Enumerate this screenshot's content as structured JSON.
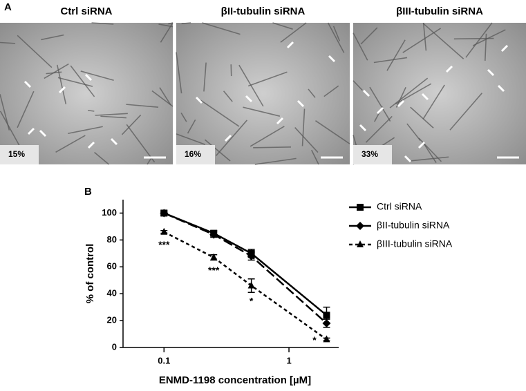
{
  "panel_a": {
    "label": "A",
    "images": [
      {
        "title": "Ctrl siRNA",
        "percent": "15%"
      },
      {
        "title": "βII-tubulin siRNA",
        "percent": "16%"
      },
      {
        "title": "βIII-tubulin siRNA",
        "percent": "33%"
      }
    ]
  },
  "chart_data": {
    "type": "line",
    "panel_label": "B",
    "x_label": "ENMD-1198 concentration [µM]",
    "y_label": "% of control",
    "x": [
      0.1,
      0.25,
      0.5,
      2
    ],
    "xlim": [
      0.047,
      2.5
    ],
    "xticks": [
      0.1,
      1
    ],
    "x_log": true,
    "ylim": [
      0,
      110
    ],
    "yticks": [
      0,
      20,
      40,
      60,
      80,
      100
    ],
    "legend": "upper-right",
    "series": [
      {
        "name": "Ctrl siRNA",
        "color": "#000000",
        "dash": "solid",
        "marker": "square",
        "values": [
          100,
          85,
          70,
          24
        ],
        "errors": [
          1.5,
          2,
          3,
          6
        ]
      },
      {
        "name": "βII-tubulin siRNA",
        "color": "#000000",
        "dash": "long",
        "marker": "diamond",
        "values": [
          100,
          84,
          68,
          18
        ],
        "errors": [
          1.5,
          2,
          3,
          3
        ]
      },
      {
        "name": "βIII-tubulin siRNA",
        "color": "#000000",
        "dash": "short",
        "marker": "triangle",
        "values": [
          86,
          67,
          46,
          6
        ],
        "errors": [
          1,
          2,
          5,
          1
        ]
      }
    ],
    "annotations": [
      {
        "x": 0.1,
        "y": 76,
        "text": "***"
      },
      {
        "x": 0.25,
        "y": 57,
        "text": "***"
      },
      {
        "x": 0.5,
        "y": 34,
        "text": "*"
      },
      {
        "x": 1.6,
        "y": 5,
        "text": "*"
      }
    ]
  }
}
